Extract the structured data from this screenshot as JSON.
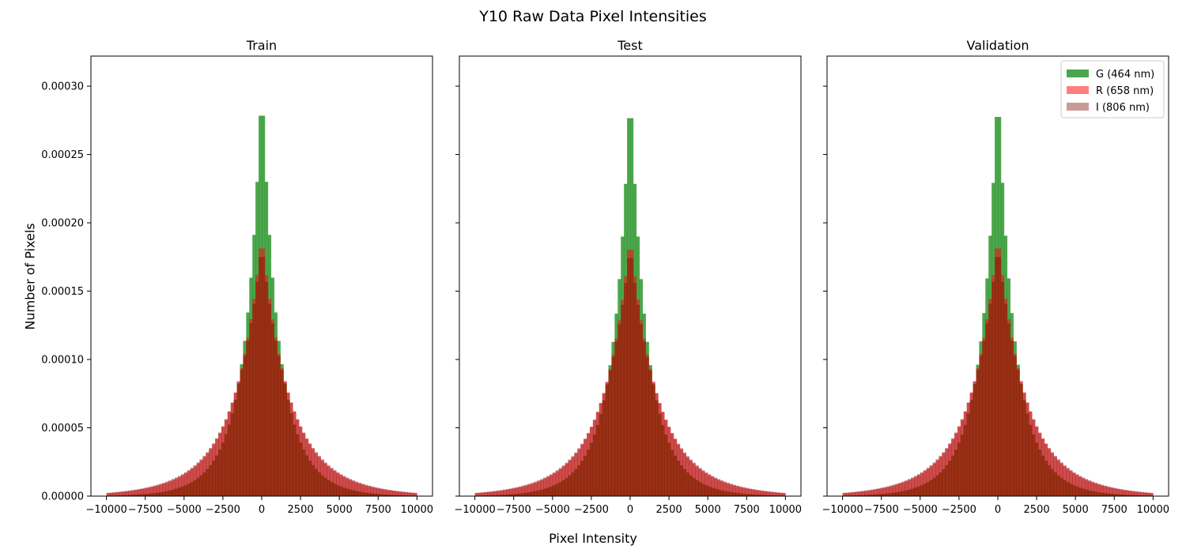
{
  "figure": {
    "title": "Y10 Raw Data Pixel Intensities",
    "xlabel": "Pixel Intensity",
    "ylabel": "Number of Pixels"
  },
  "colors": {
    "G (464 nm)": "#008000",
    "R (658 nm)": "#ff0000",
    "I (806 nm)": "#800000"
  },
  "chart_data": [
    {
      "type": "histogram",
      "title": "Train",
      "xlim": [
        -11000,
        11000
      ],
      "ylim": [
        0,
        0.000322
      ],
      "xticks": [
        -10000,
        -7500,
        -5000,
        -2500,
        0,
        2500,
        5000,
        7500,
        10000
      ],
      "xtick_labels": [
        "−10000",
        "−7500",
        "−5000",
        "−2500",
        "0",
        "2500",
        "5000",
        "7500",
        "10000"
      ],
      "yticks": [
        0,
        5e-05,
        0.0001,
        0.00015,
        0.0002,
        0.00025,
        0.0003
      ],
      "ytick_labels": [
        "0.00000",
        "0.00005",
        "0.00010",
        "0.00015",
        "0.00020",
        "0.00025",
        "0.00030"
      ],
      "bins": 100,
      "range": [
        -10000,
        10000
      ],
      "series": [
        {
          "name": "G (464 nm)",
          "alpha": 0.7,
          "peak_density": 0.000307,
          "core_width": 700,
          "core_weight": 0.45,
          "tail_width": 1600,
          "shape": "laplace-mix"
        },
        {
          "name": "R (658 nm)",
          "alpha": 0.5,
          "peak_density": 0.000192,
          "core_width": 1300,
          "core_weight": 0.5,
          "tail_width": 2600,
          "shape": "laplace-mix"
        },
        {
          "name": "I (806 nm)",
          "alpha": 0.4,
          "peak_density": 0.000185,
          "core_width": 1350,
          "core_weight": 0.5,
          "tail_width": 2700,
          "shape": "laplace-mix"
        }
      ],
      "legend": false
    },
    {
      "type": "histogram",
      "title": "Test",
      "xlim": [
        -11000,
        11000
      ],
      "ylim": [
        0,
        0.000322
      ],
      "xticks": [
        -10000,
        -7500,
        -5000,
        -2500,
        0,
        2500,
        5000,
        7500,
        10000
      ],
      "xtick_labels": [
        "−10000",
        "−7500",
        "−5000",
        "−2500",
        "0",
        "2500",
        "5000",
        "7500",
        "10000"
      ],
      "yticks": [
        0,
        5e-05,
        0.0001,
        0.00015,
        0.0002,
        0.00025,
        0.0003
      ],
      "ytick_labels": [],
      "bins": 100,
      "range": [
        -10000,
        10000
      ],
      "series": [
        {
          "name": "G (464 nm)",
          "alpha": 0.7,
          "peak_density": 0.000305,
          "core_width": 700,
          "core_weight": 0.45,
          "tail_width": 1600,
          "shape": "laplace-mix"
        },
        {
          "name": "R (658 nm)",
          "alpha": 0.5,
          "peak_density": 0.000191,
          "core_width": 1300,
          "core_weight": 0.5,
          "tail_width": 2600,
          "shape": "laplace-mix"
        },
        {
          "name": "I (806 nm)",
          "alpha": 0.4,
          "peak_density": 0.000184,
          "core_width": 1350,
          "core_weight": 0.5,
          "tail_width": 2700,
          "shape": "laplace-mix"
        }
      ],
      "legend": false
    },
    {
      "type": "histogram",
      "title": "Validation",
      "xlim": [
        -11000,
        11000
      ],
      "ylim": [
        0,
        0.000322
      ],
      "xticks": [
        -10000,
        -7500,
        -5000,
        -2500,
        0,
        2500,
        5000,
        7500,
        10000
      ],
      "xtick_labels": [
        "−10000",
        "−7500",
        "−5000",
        "−2500",
        "0",
        "2500",
        "5000",
        "7500",
        "10000"
      ],
      "yticks": [
        0,
        5e-05,
        0.0001,
        0.00015,
        0.0002,
        0.00025,
        0.0003
      ],
      "ytick_labels": [],
      "bins": 100,
      "range": [
        -10000,
        10000
      ],
      "series": [
        {
          "name": "G (464 nm)",
          "alpha": 0.7,
          "peak_density": 0.000306,
          "core_width": 700,
          "core_weight": 0.45,
          "tail_width": 1600,
          "shape": "laplace-mix"
        },
        {
          "name": "R (658 nm)",
          "alpha": 0.5,
          "peak_density": 0.000192,
          "core_width": 1300,
          "core_weight": 0.5,
          "tail_width": 2600,
          "shape": "laplace-mix"
        },
        {
          "name": "I (806 nm)",
          "alpha": 0.4,
          "peak_density": 0.000185,
          "core_width": 1350,
          "core_weight": 0.5,
          "tail_width": 2700,
          "shape": "laplace-mix"
        }
      ],
      "legend": true,
      "legend_location": "top-right",
      "legend_entries": [
        "G (464 nm)",
        "R (658 nm)",
        "I (806 nm)"
      ]
    }
  ]
}
